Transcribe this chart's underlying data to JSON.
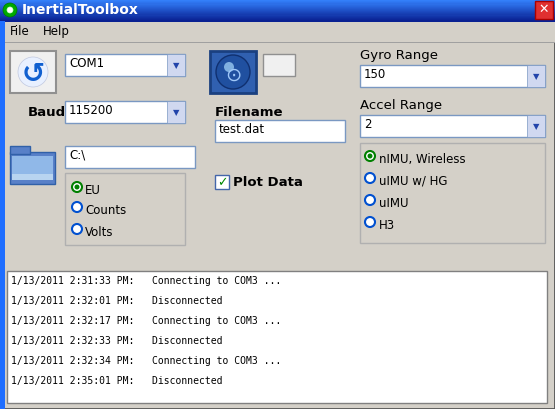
{
  "title": "InertialToolbox",
  "bg_color": "#d4d0c8",
  "titlebar_color": "#1f6eff",
  "titlebar_color2": "#0a246a",
  "titlebar_text_color": "#ffffff",
  "menu_items": [
    "File",
    "Help"
  ],
  "com_label": "COM1",
  "baud_label": "Baud",
  "baud_value": "115200",
  "path_value": "C:\\",
  "filename_label": "Filename",
  "filename_value": "test.dat",
  "gyro_label": "Gyro Range",
  "gyro_value": "150",
  "accel_label": "Accel Range",
  "accel_value": "2",
  "radio_options": [
    "EU",
    "Counts",
    "Volts"
  ],
  "radio_selected": 0,
  "checkbox_label": "Plot Data",
  "checkbox_checked": true,
  "imu_options": [
    "nIMU, Wireless",
    "uIMU w/ HG",
    "uIMU",
    "H3"
  ],
  "imu_selected": 0,
  "log_lines": [
    "1/13/2011 2:31:33 PM:   Connecting to COM3 ...",
    "1/13/2011 2:32:01 PM:   Disconnected",
    "1/13/2011 2:32:17 PM:   Connecting to COM3 ...",
    "1/13/2011 2:32:33 PM:   Disconnected",
    "1/13/2011 2:32:34 PM:   Connecting to COM3 ...",
    "1/13/2011 2:35:01 PM:   Disconnected"
  ],
  "dropdown_bg": "#ffffff",
  "border_color": "#7a98c2",
  "border_dark": "#404040",
  "radio_color_selected": "#008000",
  "radio_color_unselected": "#0050d0",
  "close_btn_color": "#c0392b",
  "arrow_bg": "#d0d8f0",
  "arrow_color": "#2244aa",
  "panel_border": "#b0b0b0",
  "log_font_size": 7.0,
  "main_font_size": 8.5,
  "label_font_size": 9.5
}
